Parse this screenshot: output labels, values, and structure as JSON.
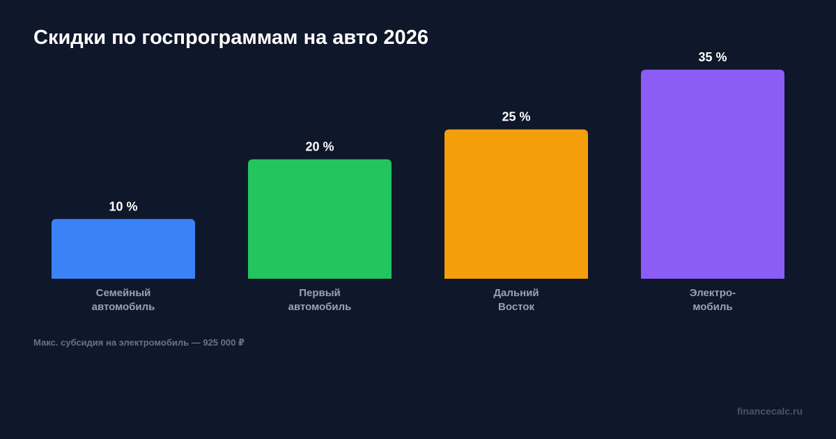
{
  "title": "Скидки по госпрограммам на авто 2026",
  "note": "Макс. субсидия на электромобиль — 925 000 ₽",
  "brand": "financecalc.ru",
  "chart_data": {
    "type": "bar",
    "categories": [
      [
        "Семейный",
        "автомобиль"
      ],
      [
        "Первый",
        "автомобиль"
      ],
      [
        "Дальний",
        "Восток"
      ],
      [
        "Электро-",
        "мобиль"
      ]
    ],
    "values": [
      10,
      20,
      25,
      35
    ],
    "value_labels": [
      "10 %",
      "20 %",
      "25 %",
      "35 %"
    ],
    "colors": [
      "#3b82f6",
      "#22c55e",
      "#f59e0b",
      "#8b5cf6"
    ],
    "title": "Скидки по госпрограммам на авто 2026",
    "xlabel": "",
    "ylabel": "",
    "ylim": [
      0,
      35
    ],
    "grid": false,
    "legend": "none"
  }
}
